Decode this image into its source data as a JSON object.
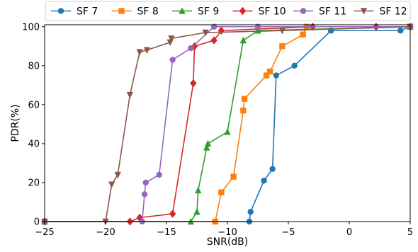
{
  "chart_data": {
    "type": "line",
    "xlabel": "SNR(dB)",
    "ylabel": "PDR(%)",
    "xlim": [
      -25,
      5
    ],
    "ylim": [
      0,
      101
    ],
    "xticks": [
      -25,
      -20,
      -15,
      -10,
      -5,
      0,
      5
    ],
    "yticks": [
      0,
      20,
      40,
      60,
      80,
      100
    ],
    "grid": false,
    "legend_position": "top",
    "series": [
      {
        "name": "SF 7",
        "color": "#1f77b4",
        "marker": "circle",
        "x": [
          -25,
          -8.2,
          -8.1,
          -7.0,
          -6.3,
          -6.0,
          -4.5,
          -1.5,
          4.2,
          5
        ],
        "y": [
          0,
          0,
          5,
          21,
          27,
          75,
          80,
          98,
          98,
          100
        ]
      },
      {
        "name": "SF 8",
        "color": "#ff7f0e",
        "marker": "square",
        "x": [
          -25,
          -11.0,
          -10.5,
          -9.5,
          -8.7,
          -8.6,
          -6.8,
          -6.5,
          -5.5,
          -3.8,
          -3.5,
          5
        ],
        "y": [
          0,
          0,
          15,
          23,
          57,
          63,
          75,
          77,
          90,
          96,
          100,
          100
        ]
      },
      {
        "name": "SF 9",
        "color": "#2ca02c",
        "marker": "triangle",
        "x": [
          -25,
          -13.0,
          -12.5,
          -12.4,
          -11.7,
          -11.6,
          -10.0,
          -8.7,
          -7.5,
          5
        ],
        "y": [
          0,
          0,
          5,
          16,
          38,
          40,
          46,
          93,
          98,
          100
        ]
      },
      {
        "name": "SF 10",
        "color": "#d62728",
        "marker": "diamond",
        "x": [
          -25,
          -18.0,
          -17.2,
          -14.5,
          -12.8,
          -12.7,
          -11.1,
          -10.5,
          -3.0,
          2.2,
          5
        ],
        "y": [
          0,
          0,
          2,
          4,
          71,
          90,
          93,
          98,
          100,
          100,
          100
        ]
      },
      {
        "name": "SF 11",
        "color": "#9467bd",
        "marker": "circle",
        "x": [
          -25,
          -17.0,
          -16.8,
          -16.7,
          -15.6,
          -14.5,
          -13.0,
          -11.1,
          -7.5,
          5
        ],
        "y": [
          0,
          0,
          14,
          20,
          24,
          83,
          89,
          100,
          100,
          100
        ]
      },
      {
        "name": "SF 12",
        "color": "#8c564b",
        "marker": "triangle-down",
        "x": [
          -25,
          -20.0,
          -19.5,
          -19.0,
          -18.0,
          -17.2,
          -16.6,
          -14.7,
          -14.6,
          -11.8,
          -5.5,
          5
        ],
        "y": [
          0,
          0,
          19,
          24,
          65,
          87,
          88,
          92,
          94,
          97,
          98,
          100
        ]
      }
    ]
  }
}
